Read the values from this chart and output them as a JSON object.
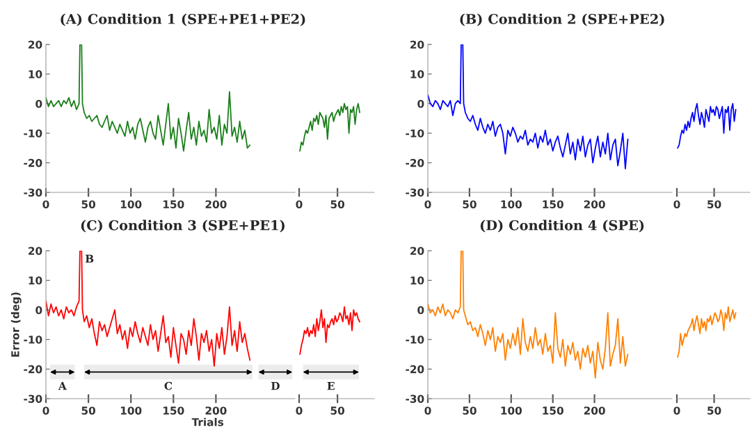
{
  "chart_data": [
    {
      "type": "line",
      "title": "(A) Condition 1 (SPE+PE1+PE2)",
      "xlim": [
        0,
        293
      ],
      "ylim": [
        -30,
        20
      ],
      "xticks": [
        0,
        50,
        100,
        150,
        200
      ],
      "yticks": [
        -30,
        -20,
        -10,
        0,
        10,
        20
      ],
      "x": [
        0,
        3,
        6,
        9,
        12,
        15,
        18,
        21,
        24,
        27,
        30,
        33,
        36,
        39,
        40,
        42,
        43,
        45,
        48,
        51,
        54,
        57,
        60,
        63,
        66,
        69,
        72,
        75,
        78,
        81,
        84,
        87,
        90,
        93,
        96,
        99,
        102,
        105,
        108,
        111,
        114,
        117,
        120,
        123,
        126,
        129,
        132,
        135,
        138,
        141,
        144,
        147,
        150,
        153,
        156,
        159,
        162,
        165,
        168,
        171,
        174,
        177,
        180,
        183,
        186,
        189,
        192,
        195,
        198,
        201,
        204,
        207,
        210,
        213,
        216,
        219,
        222,
        225,
        228,
        231,
        234,
        237,
        240
      ],
      "series": [
        {
          "color": "#1a7f1a",
          "values": [
            2,
            -1,
            1,
            -1,
            0,
            1,
            -1,
            1,
            0,
            2,
            -1,
            1,
            -2,
            0,
            20,
            20,
            0,
            -3,
            -5,
            -4,
            -6,
            -5,
            -4,
            -7,
            -8,
            -6,
            -4,
            -9,
            -6,
            -8,
            -10,
            -7,
            -9,
            -11,
            -6,
            -10,
            -8,
            -12,
            -7,
            -5,
            -9,
            -13,
            -8,
            -6,
            -10,
            -12,
            -4,
            -9,
            -14,
            -7,
            0,
            -12,
            -8,
            -15,
            -5,
            -10,
            -16,
            -9,
            -3,
            -12,
            -8,
            -14,
            -6,
            -11,
            -9,
            -13,
            -2,
            -10,
            -8,
            -12,
            -4,
            -14,
            -7,
            -10,
            4,
            -11,
            -8,
            -13,
            -6,
            -12,
            -9,
            -15,
            -14
          ]
        }
      ]
    },
    {
      "type": "line",
      "xlim": [
        0,
        98
      ],
      "ylim": [
        -30,
        20
      ],
      "xticks": [
        0,
        50
      ],
      "tick_labels": "x",
      "x": [
        1,
        3,
        5,
        7,
        9,
        11,
        13,
        15,
        17,
        19,
        21,
        23,
        25,
        27,
        29,
        31,
        33,
        35,
        37,
        39,
        41,
        43,
        45,
        47,
        49,
        51,
        53,
        55,
        57,
        59,
        61,
        63,
        65,
        67,
        69,
        71,
        73,
        75,
        77,
        79
      ],
      "series": [
        {
          "color": "#1a7f1a",
          "values": [
            -16,
            -13,
            -14,
            -11,
            -9,
            -10,
            -8,
            -6,
            -9,
            -5,
            -6,
            -4,
            -7,
            -3,
            -4,
            -5,
            -8,
            -4,
            -12,
            -5,
            -4,
            -3,
            -6,
            -4,
            -3,
            -2,
            -4,
            -1,
            -3,
            0,
            -2,
            -1,
            -10,
            -2,
            -3,
            -1,
            -7,
            -2,
            0,
            -3
          ]
        }
      ]
    },
    {
      "type": "line",
      "title": "(B) Condition 2 (SPE+PE2)",
      "xlim": [
        0,
        293
      ],
      "ylim": [
        -30,
        20
      ],
      "xticks": [
        0,
        50,
        100,
        150,
        200
      ],
      "yticks": [
        -30,
        -20,
        -10,
        0,
        10,
        20
      ],
      "x": [
        0,
        3,
        6,
        9,
        12,
        15,
        18,
        21,
        24,
        27,
        30,
        33,
        36,
        39,
        40,
        42,
        43,
        45,
        48,
        51,
        54,
        57,
        60,
        63,
        66,
        69,
        72,
        75,
        78,
        81,
        84,
        87,
        90,
        93,
        96,
        99,
        102,
        105,
        108,
        111,
        114,
        117,
        120,
        123,
        126,
        129,
        132,
        135,
        138,
        141,
        144,
        147,
        150,
        153,
        156,
        159,
        162,
        165,
        168,
        171,
        174,
        177,
        180,
        183,
        186,
        189,
        192,
        195,
        198,
        201,
        204,
        207,
        210,
        213,
        216,
        219,
        222,
        225,
        228,
        231,
        234,
        237,
        240
      ],
      "series": [
        {
          "color": "#0000ff",
          "values": [
            3,
            0,
            -1,
            1,
            0,
            -2,
            1,
            0,
            -1,
            1,
            -4,
            0,
            1,
            0,
            20,
            20,
            0,
            -3,
            -5,
            -6,
            -4,
            -7,
            -9,
            -5,
            -8,
            -10,
            -7,
            -9,
            -6,
            -11,
            -8,
            -7,
            -10,
            -17,
            -9,
            -11,
            -8,
            -10,
            -13,
            -11,
            -12,
            -9,
            -14,
            -12,
            -13,
            -10,
            -15,
            -11,
            -13,
            -9,
            -14,
            -12,
            -16,
            -13,
            -11,
            -15,
            -18,
            -14,
            -10,
            -17,
            -13,
            -19,
            -12,
            -16,
            -11,
            -18,
            -14,
            -12,
            -20,
            -15,
            -11,
            -18,
            -13,
            -17,
            -10,
            -19,
            -14,
            -12,
            -21,
            -16,
            -10,
            -22,
            -12
          ]
        }
      ]
    },
    {
      "type": "line",
      "xlim": [
        0,
        98
      ],
      "ylim": [
        -30,
        20
      ],
      "xticks": [
        0,
        50
      ],
      "tick_labels": "x",
      "x": [
        1,
        3,
        5,
        7,
        9,
        11,
        13,
        15,
        17,
        19,
        21,
        23,
        25,
        27,
        29,
        31,
        33,
        35,
        37,
        39,
        41,
        43,
        45,
        47,
        49,
        51,
        53,
        55,
        57,
        59,
        61,
        63,
        65,
        67,
        69,
        71,
        73,
        75,
        77,
        79
      ],
      "series": [
        {
          "color": "#0000ff",
          "values": [
            -15,
            -14,
            -11,
            -9,
            -10,
            -7,
            -9,
            -6,
            -8,
            -5,
            -3,
            -6,
            -2,
            0,
            -4,
            -7,
            -3,
            -5,
            -8,
            -2,
            -4,
            -6,
            -1,
            -3,
            -2,
            -4,
            -1,
            -2,
            -5,
            -3,
            -1,
            -10,
            -2,
            -3,
            -1,
            -9,
            -2,
            0,
            -6,
            -2
          ]
        }
      ]
    },
    {
      "type": "line",
      "title": "(C) Condition 3 (SPE+PE1)",
      "xlabel": "Trials",
      "ylabel": "Error (deg)",
      "xlim": [
        0,
        293
      ],
      "ylim": [
        -30,
        20
      ],
      "xticks": [
        0,
        50,
        100,
        150,
        200
      ],
      "yticks": [
        -30,
        -20,
        -10,
        0,
        10,
        20
      ],
      "annotations": [
        {
          "text": "B",
          "x": 46,
          "y": 17
        }
      ],
      "bands": [
        {
          "axis": "x",
          "from": 5,
          "to": 34,
          "label": "A"
        },
        {
          "axis": "x",
          "from": 45,
          "to": 243,
          "label": "C"
        },
        {
          "axis": "x",
          "from": 250,
          "to": 290,
          "label": "D"
        }
      ],
      "x": [
        0,
        3,
        6,
        9,
        12,
        15,
        18,
        21,
        24,
        27,
        30,
        33,
        36,
        39,
        40,
        42,
        43,
        45,
        48,
        51,
        54,
        57,
        60,
        63,
        66,
        69,
        72,
        75,
        78,
        81,
        84,
        87,
        90,
        93,
        96,
        99,
        102,
        105,
        108,
        111,
        114,
        117,
        120,
        123,
        126,
        129,
        132,
        135,
        138,
        141,
        144,
        147,
        150,
        153,
        156,
        159,
        162,
        165,
        168,
        171,
        174,
        177,
        180,
        183,
        186,
        189,
        192,
        195,
        198,
        201,
        204,
        207,
        210,
        213,
        216,
        219,
        222,
        225,
        228,
        231,
        234,
        237,
        240
      ],
      "series": [
        {
          "color": "#ff0000",
          "values": [
            3,
            -2,
            2,
            -1,
            1,
            -2,
            0,
            -3,
            1,
            -1,
            0,
            -2,
            1,
            3,
            20,
            20,
            0,
            -4,
            -2,
            -6,
            -3,
            -8,
            -12,
            -4,
            -7,
            -5,
            -9,
            -6,
            -3,
            0,
            -8,
            -5,
            -10,
            -7,
            -13,
            -6,
            -9,
            -4,
            -8,
            -11,
            -6,
            -9,
            -12,
            -5,
            -10,
            -7,
            -14,
            -8,
            -2,
            -11,
            -9,
            -16,
            -6,
            -12,
            -18,
            -8,
            -10,
            -15,
            -7,
            -12,
            -3,
            -9,
            -17,
            -8,
            -11,
            -7,
            -14,
            -10,
            -19,
            -8,
            -13,
            -6,
            -15,
            -9,
            1,
            -12,
            -7,
            -14,
            -4,
            -11,
            -8,
            -13,
            -17
          ]
        }
      ]
    },
    {
      "type": "line",
      "xlim": [
        0,
        98
      ],
      "ylim": [
        -30,
        20
      ],
      "xticks": [
        0,
        50
      ],
      "tick_labels": "x",
      "bands": [
        {
          "axis": "x",
          "from": 5,
          "to": 78,
          "label": "E"
        }
      ],
      "x": [
        1,
        3,
        5,
        7,
        9,
        11,
        13,
        15,
        17,
        19,
        21,
        23,
        25,
        27,
        29,
        31,
        33,
        35,
        37,
        39,
        41,
        43,
        45,
        47,
        49,
        51,
        53,
        55,
        57,
        59,
        61,
        63,
        65,
        67,
        69,
        71,
        73,
        75,
        77,
        79
      ],
      "series": [
        {
          "color": "#ff0000",
          "values": [
            -15,
            -12,
            -10,
            -7,
            -8,
            -6,
            -9,
            -7,
            -8,
            -5,
            -9,
            -3,
            -7,
            -4,
            0,
            -6,
            -3,
            -11,
            -5,
            -6,
            -4,
            -3,
            -5,
            -2,
            -4,
            -3,
            -1,
            -2,
            -4,
            1,
            -3,
            -2,
            -5,
            -1,
            -7,
            0,
            -2,
            -1,
            -3,
            -4
          ]
        }
      ]
    },
    {
      "type": "line",
      "title": "(D) Condition 4 (SPE)",
      "xlim": [
        0,
        293
      ],
      "ylim": [
        -30,
        20
      ],
      "xticks": [
        0,
        50,
        100,
        150,
        200
      ],
      "yticks": [
        -30,
        -20,
        -10,
        0,
        10,
        20
      ],
      "x": [
        0,
        3,
        6,
        9,
        12,
        15,
        18,
        21,
        24,
        27,
        30,
        33,
        36,
        39,
        40,
        42,
        43,
        45,
        48,
        51,
        54,
        57,
        60,
        63,
        66,
        69,
        72,
        75,
        78,
        81,
        84,
        87,
        90,
        93,
        96,
        99,
        102,
        105,
        108,
        111,
        114,
        117,
        120,
        123,
        126,
        129,
        132,
        135,
        138,
        141,
        144,
        147,
        150,
        153,
        156,
        159,
        162,
        165,
        168,
        171,
        174,
        177,
        180,
        183,
        186,
        189,
        192,
        195,
        198,
        201,
        204,
        207,
        210,
        213,
        216,
        219,
        222,
        225,
        228,
        231,
        234,
        237,
        240
      ],
      "series": [
        {
          "color": "#ff8000",
          "values": [
            2,
            -1,
            0,
            -2,
            1,
            -1,
            2,
            -2,
            0,
            -1,
            -3,
            0,
            -1,
            1,
            20,
            20,
            0,
            -2,
            -5,
            -4,
            -7,
            -6,
            -9,
            -5,
            -8,
            -12,
            -7,
            -10,
            -6,
            -14,
            -9,
            -11,
            -8,
            -17,
            -10,
            -13,
            -8,
            -12,
            -6,
            -15,
            -3,
            -11,
            -14,
            -9,
            -13,
            -6,
            -12,
            -10,
            -15,
            -8,
            -14,
            -12,
            -18,
            -1,
            -13,
            -16,
            -10,
            -19,
            -12,
            -15,
            -11,
            -17,
            -14,
            -20,
            -13,
            -16,
            -12,
            -18,
            -14,
            -23,
            -11,
            -17,
            -20,
            -13,
            -1,
            -19,
            -15,
            -12,
            -3,
            -18,
            -9,
            -19,
            -15
          ]
        }
      ]
    },
    {
      "type": "line",
      "xlim": [
        0,
        98
      ],
      "ylim": [
        -30,
        20
      ],
      "xticks": [
        0,
        50
      ],
      "tick_labels": "x",
      "x": [
        1,
        3,
        5,
        7,
        9,
        11,
        13,
        15,
        17,
        19,
        21,
        23,
        25,
        27,
        29,
        31,
        33,
        35,
        37,
        39,
        41,
        43,
        45,
        47,
        49,
        51,
        53,
        55,
        57,
        59,
        61,
        63,
        65,
        67,
        69,
        71,
        73,
        75,
        77,
        79
      ],
      "series": [
        {
          "color": "#ff8000",
          "values": [
            -16,
            -14,
            -8,
            -12,
            -10,
            -8,
            -9,
            -7,
            -6,
            -5,
            -3,
            -7,
            -4,
            -2,
            -5,
            -8,
            -3,
            -6,
            -4,
            -7,
            -3,
            -4,
            -2,
            -5,
            -3,
            -1,
            -2,
            -4,
            -3,
            0,
            -2,
            -7,
            -1,
            -3,
            1,
            -4,
            -2,
            0,
            -3,
            -1
          ]
        }
      ]
    }
  ]
}
